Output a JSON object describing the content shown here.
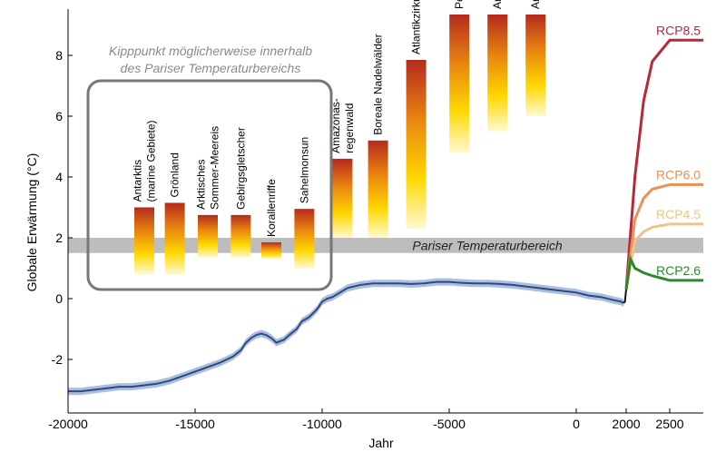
{
  "chart_data": {
    "type": "line",
    "xlabel": "Jahr",
    "ylabel": "Globale Erwärmung (°C)",
    "xlim": [
      -20000,
      2800
    ],
    "ylim": [
      -3.2,
      9.5
    ],
    "x_scale_note": "piecewise",
    "xticks": [
      {
        "value": -20000,
        "label": "-20000"
      },
      {
        "value": -15000,
        "label": "-15000"
      },
      {
        "value": -10000,
        "label": "-10000"
      },
      {
        "value": -5000,
        "label": "-5000"
      },
      {
        "value": 0,
        "label": "0"
      },
      {
        "value": 2000,
        "label": "2000"
      },
      {
        "value": 2500,
        "label": "2500"
      }
    ],
    "yticks": [
      {
        "value": -2,
        "label": "-2"
      },
      {
        "value": 0,
        "label": "0"
      },
      {
        "value": 2,
        "label": "2"
      },
      {
        "value": 4,
        "label": "4"
      },
      {
        "value": 6,
        "label": "6"
      },
      {
        "value": 8,
        "label": "8"
      }
    ],
    "paris_band": {
      "y0": 1.5,
      "y1": 2.0,
      "label": "Pariser Temperaturbereich",
      "color": "#bdbdbd"
    },
    "box_caption": [
      "Kipppunkt möglicherweise innerhalb",
      "des Pariser Temperaturbereichs"
    ],
    "tipping_points": [
      {
        "label": [
          "Antarktis",
          "(marine Gebiete)"
        ],
        "x": -17000,
        "low": 0.8,
        "high": 3.0
      },
      {
        "label": [
          "Grönland"
        ],
        "x": -15800,
        "low": 0.8,
        "high": 3.15
      },
      {
        "label": [
          "Arktisches",
          "Sommer-Meereis"
        ],
        "x": -14500,
        "low": 1.35,
        "high": 2.75
      },
      {
        "label": [
          "Gebirgsgletscher"
        ],
        "x": -13200,
        "low": 1.35,
        "high": 2.75
      },
      {
        "label": [
          "Korallenriffe"
        ],
        "x": -12000,
        "low": 1.3,
        "high": 1.85
      },
      {
        "label": [
          "Sahelmonsun"
        ],
        "x": -10700,
        "low": 1.0,
        "high": 2.95
      },
      {
        "label": [
          "Amazonas-",
          "regenwald"
        ],
        "x": -9200,
        "low": 2.0,
        "high": 4.6
      },
      {
        "label": [
          "Boreale Nadelwälder"
        ],
        "x": -7800,
        "low": 2.0,
        "high": 5.2
      },
      {
        "label": [
          "Atlantikzirkulation"
        ],
        "x": -6300,
        "low": 2.3,
        "high": 7.85
      },
      {
        "label": [
          "Permafrost"
        ],
        "x": -4600,
        "low": 4.8,
        "high": 9.4
      },
      {
        "label": [
          "Arktisches Winter-Meereis"
        ],
        "x": -3100,
        "low": 5.5,
        "high": 9.4
      },
      {
        "label": [
          "Antarktis (nicht-marin)"
        ],
        "x": -1600,
        "low": 6.0,
        "high": 9.4
      }
    ],
    "series": [
      {
        "name": "",
        "color": "#2e4a7d",
        "uncertainty": 0.12,
        "x": [
          -20000,
          -19500,
          -19000,
          -18500,
          -18000,
          -17500,
          -17000,
          -16500,
          -16000,
          -15500,
          -15000,
          -14500,
          -14000,
          -13500,
          -13200,
          -13000,
          -12800,
          -12600,
          -12400,
          -12200,
          -12000,
          -11800,
          -11500,
          -11300,
          -11000,
          -10800,
          -10500,
          -10200,
          -10000,
          -9800,
          -9600,
          -9400,
          -9200,
          -9000,
          -8500,
          -8000,
          -7500,
          -7000,
          -6500,
          -6000,
          -5500,
          -5000,
          -4500,
          -4000,
          -3500,
          -3000,
          -2500,
          -2000,
          -1500,
          -1000,
          -500,
          0,
          500,
          1000,
          1500,
          1800,
          1900
        ],
        "y": [
          -3.05,
          -3.05,
          -3.0,
          -2.95,
          -2.9,
          -2.9,
          -2.85,
          -2.8,
          -2.7,
          -2.55,
          -2.4,
          -2.25,
          -2.1,
          -1.9,
          -1.7,
          -1.45,
          -1.3,
          -1.2,
          -1.15,
          -1.2,
          -1.3,
          -1.45,
          -1.35,
          -1.2,
          -1.0,
          -0.75,
          -0.6,
          -0.35,
          -0.1,
          0.0,
          0.05,
          0.15,
          0.25,
          0.35,
          0.45,
          0.5,
          0.5,
          0.5,
          0.48,
          0.5,
          0.55,
          0.55,
          0.52,
          0.5,
          0.5,
          0.48,
          0.45,
          0.4,
          0.35,
          0.3,
          0.25,
          0.2,
          0.1,
          0.05,
          -0.05,
          -0.1,
          -0.15
        ]
      },
      {
        "name": "",
        "color": "#111111",
        "x": [
          1900,
          1950,
          2000
        ],
        "y": [
          -0.15,
          -0.1,
          0.3
        ]
      }
    ],
    "projections": [
      {
        "name": "RCP8.5",
        "color": "#b8283a",
        "x": [
          2000,
          2100,
          2200,
          2300,
          2500,
          2800
        ],
        "y": [
          0.3,
          4.0,
          6.5,
          7.8,
          8.5,
          8.5
        ]
      },
      {
        "name": "RCP6.0",
        "color": "#e8915a",
        "x": [
          2000,
          2100,
          2200,
          2300,
          2500,
          2800
        ],
        "y": [
          0.3,
          2.6,
          3.3,
          3.6,
          3.75,
          3.75
        ]
      },
      {
        "name": "RCP4.5",
        "color": "#f2c28a",
        "x": [
          2000,
          2100,
          2200,
          2300,
          2500,
          2800
        ],
        "y": [
          0.3,
          1.9,
          2.2,
          2.35,
          2.45,
          2.45
        ]
      },
      {
        "name": "RCP2.6",
        "color": "#2a8a2a",
        "x": [
          2000,
          2050,
          2100,
          2200,
          2300,
          2500,
          2800
        ],
        "y": [
          0.3,
          1.3,
          1.0,
          0.85,
          0.75,
          0.6,
          0.6
        ]
      }
    ]
  }
}
